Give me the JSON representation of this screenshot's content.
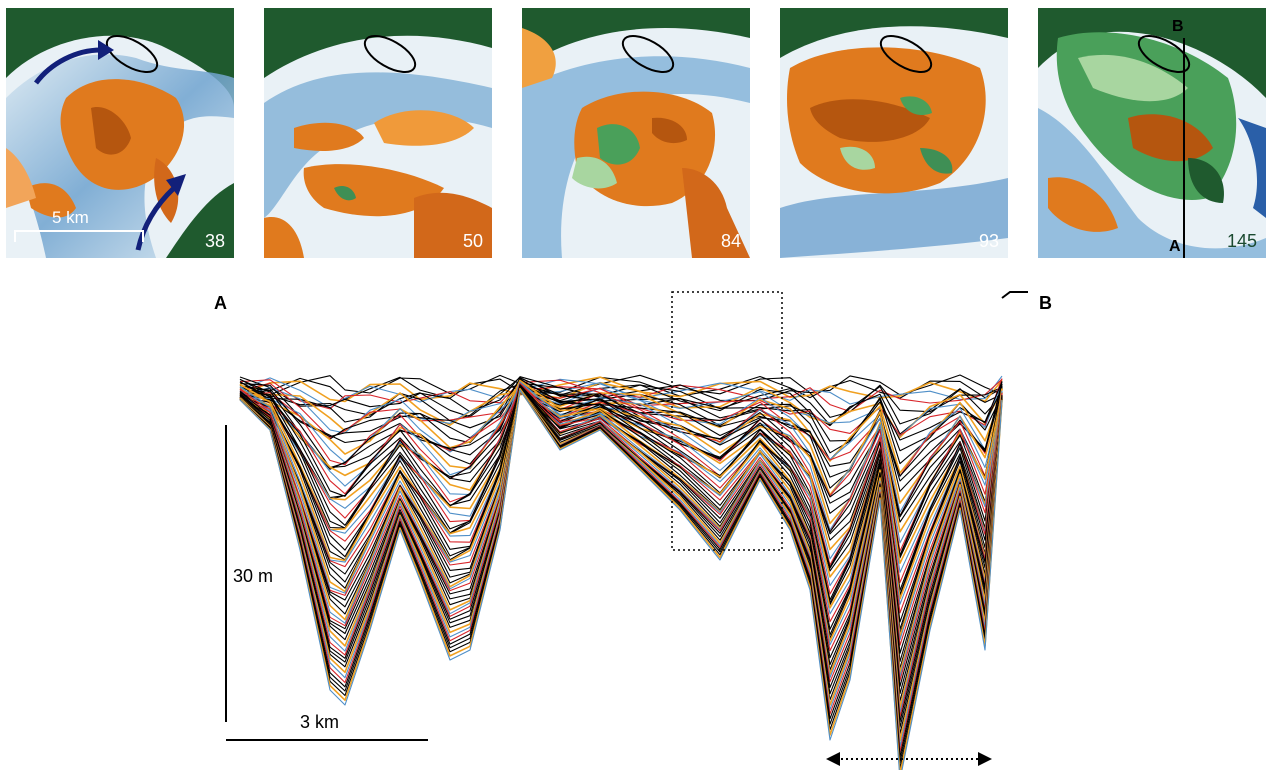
{
  "panels": [
    {
      "label": "38"
    },
    {
      "label": "50"
    },
    {
      "label": "84"
    },
    {
      "label": "93"
    },
    {
      "label": "145"
    }
  ],
  "map_scale_label": "5 km",
  "section_start_label": "A",
  "section_end_label": "B",
  "vertical_scale_label": "30 m",
  "horizontal_scale_label": "3 km",
  "colors": {
    "floodplain": "#1f5a2e",
    "channel": "#6fa3cf",
    "bar": "#e07a1e",
    "vegetation": "#4aa05a",
    "profile_black": "#000000",
    "profile_orange": "#f0a020",
    "profile_blue": "#4f8fc8",
    "profile_red": "#d8252a"
  }
}
